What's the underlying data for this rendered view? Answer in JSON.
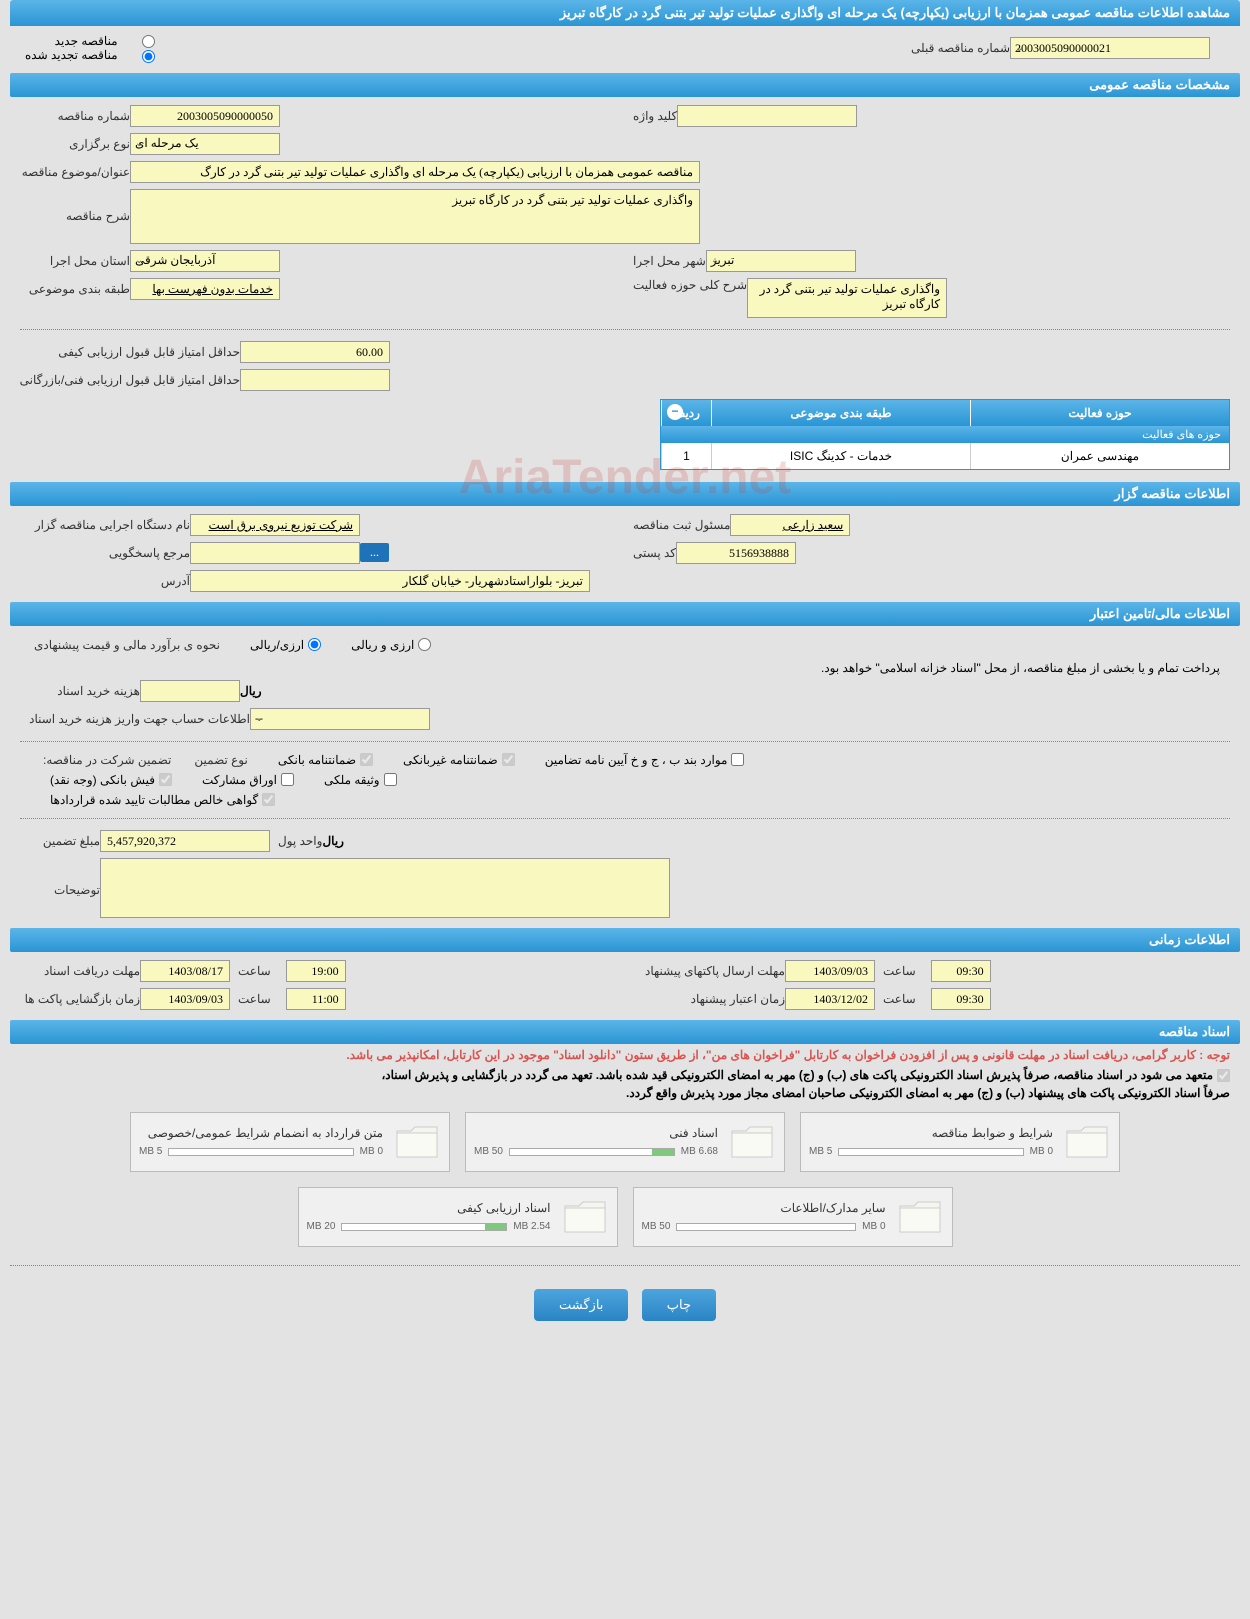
{
  "header_title": "مشاهده اطلاعات مناقصه عمومی همزمان با ارزیابی (یکپارچه) یک مرحله ای واگذاری عملیات تولید تیر بتنی گرد در کارگاه تبریز",
  "radios": {
    "new_tender": "مناقصه جدید",
    "renewed_tender": "مناقصه تجدید شده",
    "prev_number_label": "شماره مناقصه قبلی",
    "prev_number_value": "2003005090000021"
  },
  "sections": {
    "general": "مشخصات مناقصه عمومی",
    "organizer": "اطلاعات مناقصه گزار",
    "financial": "اطلاعات مالی/تامین اعتبار",
    "time": "اطلاعات زمانی",
    "documents": "اسناد مناقصه"
  },
  "general": {
    "tender_number_label": "شماره مناقصه",
    "tender_number": "2003005090000050",
    "keyword_label": "کلید واژه",
    "keyword": "",
    "type_label": "نوع برگزاری",
    "type_value": "یک مرحله ای",
    "title_label": "عنوان/موضوع مناقصه",
    "title_value": "مناقصه عمومی همزمان با ارزیابی (یکپارچه) یک مرحله ای واگذاری عملیات تولید تیر بتنی گرد در کارگ",
    "desc_label": "شرح مناقصه",
    "desc_value": "واگذاری عملیات تولید تیر بتنی گرد در کارگاه تبریز",
    "province_label": "استان محل اجرا",
    "province_value": "آذربایجان شرقی",
    "city_label": "شهر محل اجرا",
    "city_value": "تبریز",
    "category_label": "طبقه بندی موضوعی",
    "category_value": "خدمات بدون فهرست بها",
    "activity_scope_label": "شرح کلی حوزه فعالیت",
    "activity_scope_value": "واگذاری عملیات تولید تیر بتنی گرد در کارگاه تبریز",
    "min_qual_score_label": "حداقل امتیاز قابل قبول ارزیابی کیفی",
    "min_qual_score": "60.00",
    "min_tech_score_label": "حداقل امتیاز قابل قبول ارزیابی فنی/بازرگانی",
    "min_tech_score": ""
  },
  "activity_table": {
    "title": "حوزه های فعالیت",
    "cols": {
      "row": "ردیف",
      "category": "طبقه بندی موضوعی",
      "scope": "حوزه فعالیت"
    },
    "row1": {
      "num": "1",
      "category": "خدمات - کدینگ ISIC",
      "scope": "مهندسی عمران"
    }
  },
  "organizer": {
    "agency_label": "نام دستگاه اجرایی مناقصه گزار",
    "agency_value": "شرکت توزیع نیروی برق است",
    "responsible_label": "مسئول ثبت مناقصه",
    "responsible_value": "سعید زارعی",
    "reference_label": "مرجع پاسخگویی",
    "reference_value": "",
    "more_btn": "...",
    "postcode_label": "کد پستی",
    "postcode_value": "5156938888",
    "address_label": "آدرس",
    "address_value": "تبریز- بلواراستادشهریار- خیابان گلکار"
  },
  "financial": {
    "method_label": "نحوه ی برآورد مالی و قیمت پیشنهادی",
    "radio_rial": "ارزی/ریالی",
    "radio_currency": "ارزی و ریالی",
    "payment_note": "پرداخت تمام و یا بخشی از مبلغ مناقصه، از محل \"اسناد خزانه اسلامی\" خواهد بود.",
    "doc_cost_label": "هزینه خرید اسناد",
    "doc_cost_value": "",
    "rial_label": "ریال",
    "account_label": "اطلاعات حساب جهت واریز هزینه خرید اسناد",
    "account_value": "--",
    "guarantee_label": "تضمین شرکت در مناقصه:",
    "guarantee_type_label": "نوع تضمین",
    "check_bank": "ضمانتنامه بانکی",
    "check_nonbank": "ضمانتنامه غیربانکی",
    "check_bonds": "موارد بند ب ، ج و خ آیین نامه تضامین",
    "check_cash": "فیش بانکی (وجه نقد)",
    "check_papers": "اوراق مشارکت",
    "check_property": "وثیقه ملکی",
    "check_claims": "گواهی خالص مطالبات تایید شده قراردادها",
    "guarantee_amount_label": "مبلغ تضمین",
    "guarantee_amount": "5,457,920,372",
    "unit_label": "واحد پول",
    "unit_value": "ریال",
    "notes_label": "توضیحات",
    "notes_value": ""
  },
  "time": {
    "doc_deadline_label": "مهلت دریافت اسناد",
    "doc_deadline_date": "1403/08/17",
    "hour_label": "ساعت",
    "doc_deadline_time": "19:00",
    "envelope_deadline_label": "مهلت ارسال پاکتهای پیشنهاد",
    "envelope_deadline_date": "1403/09/03",
    "envelope_deadline_time": "09:30",
    "opening_label": "زمان بازگشایی پاکت ها",
    "opening_date": "1403/09/03",
    "opening_time": "11:00",
    "validity_label": "زمان اعتبار پیشنهاد",
    "validity_date": "1403/12/02",
    "validity_time": "09:30"
  },
  "documents": {
    "note1": "توجه : کاربر گرامی، دریافت اسناد در مهلت قانونی و پس از افزودن فراخوان به کارتابل \"فراخوان های من\"، از طریق ستون \"دانلود اسناد\" موجود در این کارتابل، امکانپذیر می باشد.",
    "note2": "متعهد می شود در اسناد مناقصه، صرفاً پذیرش اسناد الکترونیکی پاکت های (ب) و (ج) مهر به امضای الکترونیکی قید شده باشد. تعهد می گردد در بازگشایی و پذیرش اسناد،",
    "note3": "صرفاً اسناد الکترونیکی پاکت های پیشنهاد (ب) و (ج) مهر به امضای الکترونیکی صاحبان امضای مجاز مورد پذیرش واقع گردد.",
    "files": [
      {
        "title": "شرایط و ضوابط مناقصه",
        "used": "0 MB",
        "max": "5 MB",
        "pct": 0
      },
      {
        "title": "اسناد فنی",
        "used": "6.68 MB",
        "max": "50 MB",
        "pct": 13
      },
      {
        "title": "متن قرارداد به انضمام شرایط عمومی/خصوصی",
        "used": "0 MB",
        "max": "5 MB",
        "pct": 0
      },
      {
        "title": "سایر مدارک/اطلاعات",
        "used": "0 MB",
        "max": "50 MB",
        "pct": 0
      },
      {
        "title": "اسناد ارزیابی کیفی",
        "used": "2.54 MB",
        "max": "20 MB",
        "pct": 13
      }
    ]
  },
  "buttons": {
    "print": "چاپ",
    "back": "بازگشت"
  },
  "watermark": "AriaTender.net",
  "colors": {
    "header_bg1": "#5bb5e8",
    "header_bg2": "#2a95d4",
    "field_bg": "#f9f8bf",
    "page_bg": "#e3e3e3",
    "btn_bg": "#2a85c4",
    "note_red": "#d9534f",
    "progress_green": "#7ec97e"
  }
}
